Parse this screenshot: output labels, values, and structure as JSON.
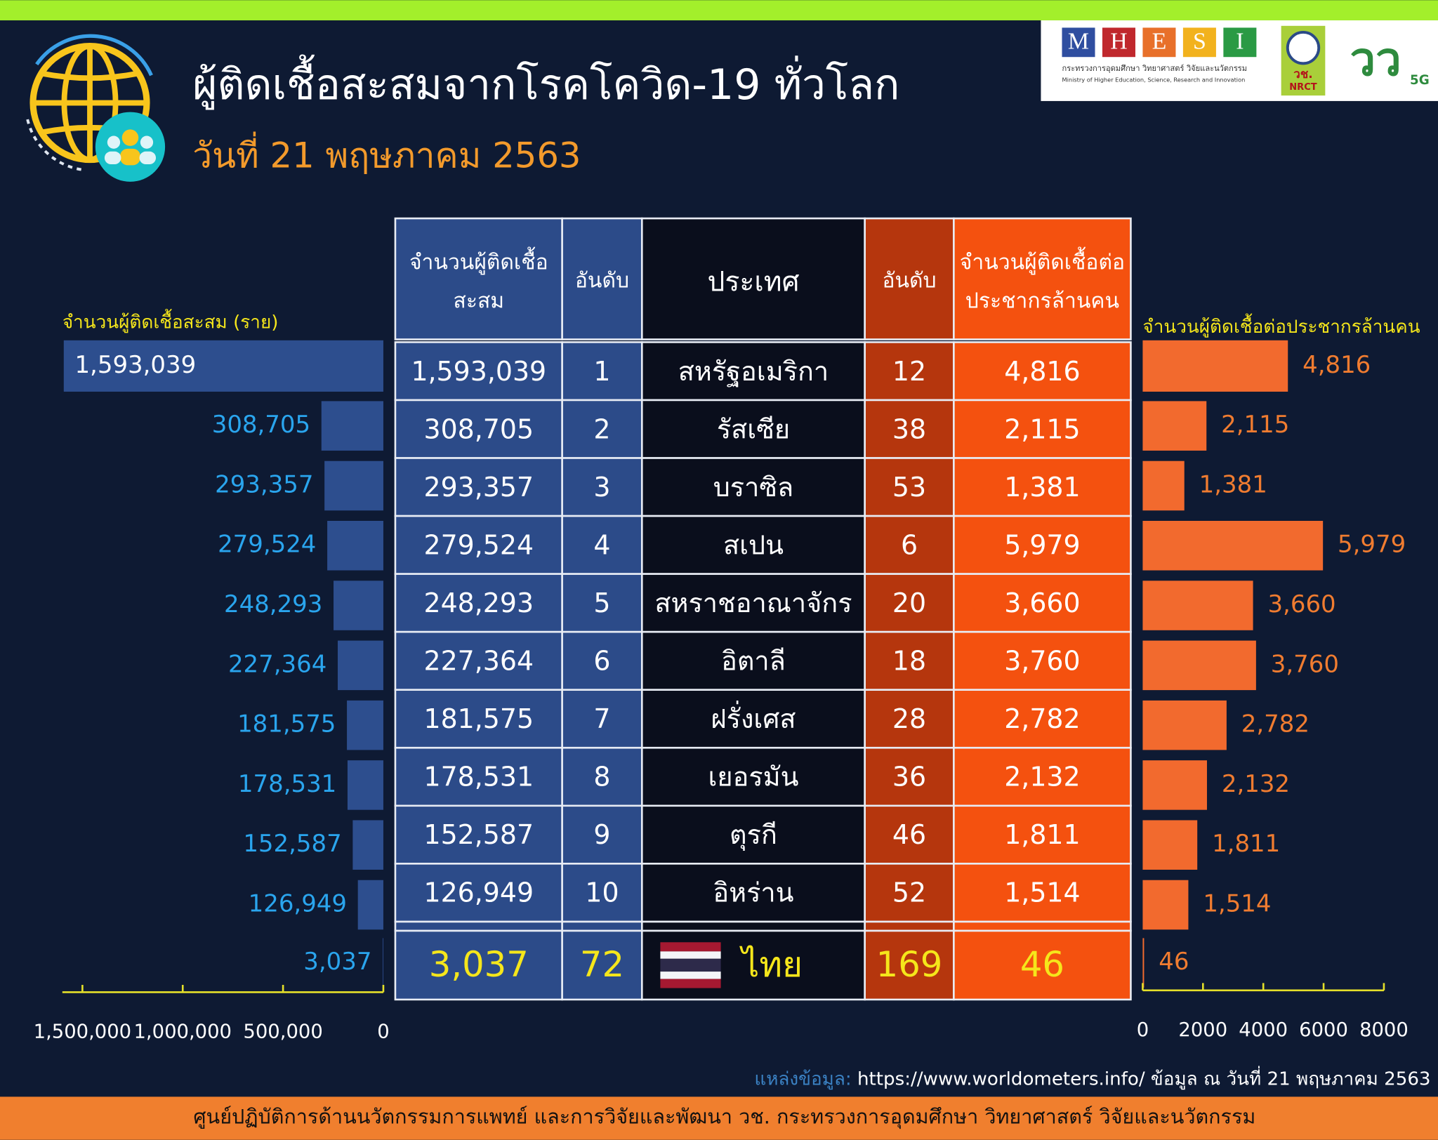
{
  "header": {
    "title": "ผู้ติดเชื้อสะสมจากโรคโควิด-19 ทั่วโลก",
    "date": "วันที่ 21 พฤษภาคม 2563",
    "logo": {
      "letters": [
        "M",
        "H",
        "E",
        "S",
        "I"
      ],
      "ministry_th": "กระทรวงการอุดมศึกษา วิทยาศาสตร์ วิจัยและนวัตกรรม",
      "ministry_en": "Ministry of Higher Education, Science, Research and Innovation",
      "nrct_th": "วช.",
      "nrct_en": "NRCT",
      "brand": "วว",
      "brand_sub": "5G"
    }
  },
  "table": {
    "header": [
      [
        "จำนวนผู้ติดเชื้อ",
        "สะสม"
      ],
      [
        "อันดับ"
      ],
      [
        "ประเทศ"
      ],
      [
        "อันดับ"
      ],
      [
        "จำนวนผู้ติดเชื้อต่อ",
        "ประชากรล้านคน"
      ]
    ],
    "rows": [
      [
        "1,593,039",
        "1",
        "สหรัฐอเมริกา",
        "12",
        "4,816"
      ],
      [
        "308,705",
        "2",
        "รัสเซีย",
        "38",
        "2,115"
      ],
      [
        "293,357",
        "3",
        "บราซิล",
        "53",
        "1,381"
      ],
      [
        "279,524",
        "4",
        "สเปน",
        "6",
        "5,979"
      ],
      [
        "248,293",
        "5",
        "สหราชอาณาจักร",
        "20",
        "3,660"
      ],
      [
        "227,364",
        "6",
        "อิตาลี",
        "18",
        "3,760"
      ],
      [
        "181,575",
        "7",
        "ฝรั่งเศส",
        "28",
        "2,782"
      ],
      [
        "178,531",
        "8",
        "เยอรมัน",
        "36",
        "2,132"
      ],
      [
        "152,587",
        "9",
        "ตุรกี",
        "46",
        "1,811"
      ],
      [
        "126,949",
        "10",
        "อิหร่าน",
        "52",
        "1,514"
      ],
      [
        "3,037",
        "72",
        "ไทย",
        "169",
        "46"
      ]
    ]
  },
  "chart_data": [
    {
      "type": "bar",
      "orientation": "horizontal",
      "x_reversed": true,
      "title": "จำนวนผู้ติดเชื้อสะสม (ราย)",
      "values": [
        1593039,
        308705,
        293357,
        279524,
        248293,
        227364,
        181575,
        178531,
        152587,
        126949,
        3037
      ],
      "value_labels": [
        "1,593,039",
        "308,705",
        "293,357",
        "279,524",
        "248,293",
        "227,364",
        "181,575",
        "178,531",
        "152,587",
        "126,949",
        "3,037"
      ],
      "color": "#2d4e8e",
      "label_color": "#2aa5ee",
      "xlim": [
        0,
        1600000
      ],
      "xticks": [
        {
          "value": 1500000,
          "label": "1,500,000"
        },
        {
          "value": 1000000,
          "label": "1,000,000"
        },
        {
          "value": 500000,
          "label": "500,000"
        },
        0
      ]
    },
    {
      "type": "bar",
      "orientation": "horizontal",
      "x_reversed": false,
      "title": "จำนวนผู้ติดเชื้อต่อประชากรล้านคน",
      "values": [
        4816,
        2115,
        1381,
        5979,
        3660,
        3760,
        2782,
        2132,
        1811,
        1514,
        46
      ],
      "value_labels": [
        "4,816",
        "2,115",
        "1,381",
        "5,979",
        "3,660",
        "3,760",
        "2,782",
        "2,132",
        "1,811",
        "1,514",
        "46"
      ],
      "color": "#f26a2e",
      "label_color": "#f07c30",
      "xlim": [
        0,
        8000
      ],
      "xticks": [
        0,
        2000,
        4000,
        6000,
        8000
      ]
    }
  ],
  "source": {
    "label": "แหล่งข้อมูล:",
    "text": "https://www.worldometers.info/ ข้อมูล ณ วันที่ 21 พฤษภาคม 2563"
  },
  "footer": "ศูนย์ปฏิบัติการด้านนวัตกรรมการแพทย์ และการวิจัยและพัฒนา  วช.   กระทรวงการอุดมศึกษา วิทยาศาสตร์ วิจัยและนวัตกรรม"
}
